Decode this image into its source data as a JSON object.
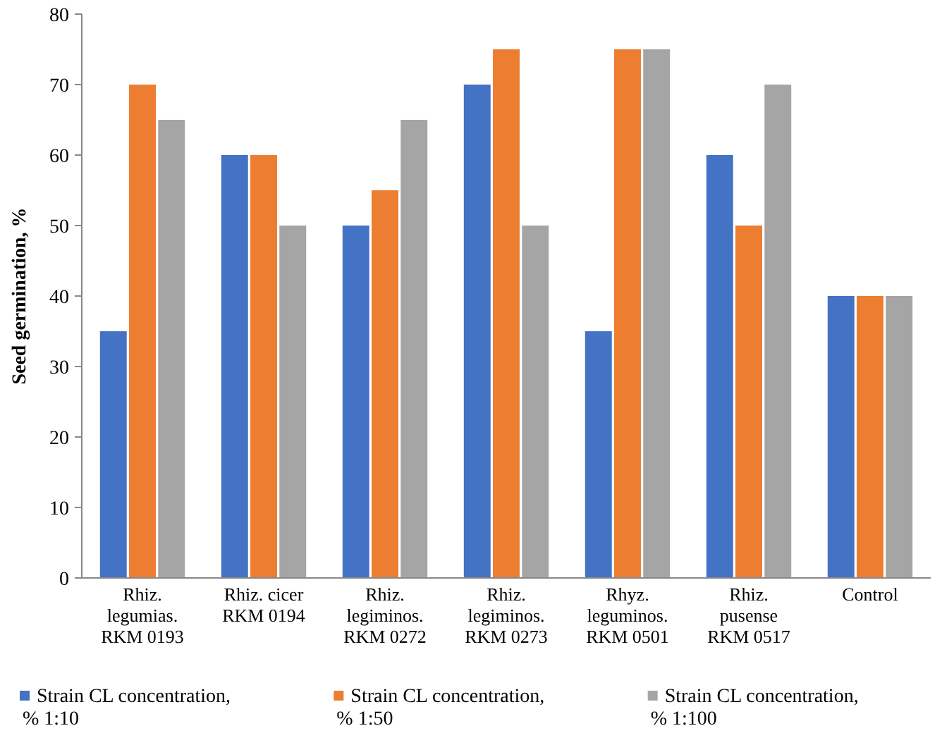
{
  "chart_data": {
    "type": "bar",
    "ylabel": "Seed germination,  %",
    "categories": [
      "Rhiz.\nlegumias.\nRKM 0193",
      "Rhiz. cicer\nRKM 0194",
      "Rhiz.\nlegiminos.\nRKM 0272",
      "Rhiz.\nlegiminos.\nRKM 0273",
      "Rhyz.\nleguminos.\nRKM 0501",
      "Rhiz.\npusense\nRKM 0517",
      "Control"
    ],
    "series": [
      {
        "name": "Strain CL concentration, % 1:10",
        "color": "#4472c4",
        "values": [
          35,
          60,
          50,
          70,
          35,
          60,
          40
        ]
      },
      {
        "name": "Strain CL concentration, % 1:50",
        "color": "#ed7d31",
        "values": [
          70,
          60,
          55,
          75,
          75,
          50,
          40
        ]
      },
      {
        "name": "Strain CL concentration, % 1:100",
        "color": "#a5a5a5",
        "values": [
          65,
          50,
          65,
          50,
          75,
          70,
          40
        ]
      }
    ],
    "ylim": [
      0,
      80
    ],
    "yticks": [
      0,
      10,
      20,
      30,
      40,
      50,
      60,
      70,
      80
    ],
    "legend": "bottom"
  }
}
